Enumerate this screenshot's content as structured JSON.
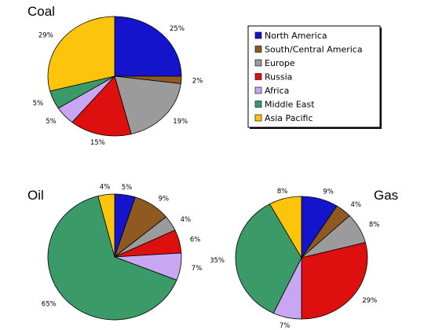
{
  "colors": {
    "North America": "#1414cc",
    "South/Central America": "#8f5a22",
    "Europe": "#9b9b9b",
    "Russia": "#dd0f0f",
    "Africa": "#c9a6f2",
    "Middle East": "#3a9a68",
    "Asia Pacific": "#fcc40c"
  },
  "legend": {
    "entries": [
      "North America",
      "South/Central America",
      "Europe",
      "Russia",
      "Africa",
      "Middle East",
      "Asia Pacific"
    ]
  },
  "chart_data": [
    {
      "type": "pie",
      "title": "Coal",
      "slices": [
        {
          "name": "North America",
          "value": 25,
          "label": "25%"
        },
        {
          "name": "South/Central America",
          "value": 2,
          "label": "2%"
        },
        {
          "name": "Europe",
          "value": 19,
          "label": "19%"
        },
        {
          "name": "Russia",
          "value": 15,
          "label": "15%"
        },
        {
          "name": "Africa",
          "value": 5,
          "label": "5%"
        },
        {
          "name": "Middle East",
          "value": 5,
          "label": "5%"
        },
        {
          "name": "Asia Pacific",
          "value": 29,
          "label": "29%"
        }
      ]
    },
    {
      "type": "pie",
      "title": "Oil",
      "slices": [
        {
          "name": "North America",
          "value": 5,
          "label": "5%"
        },
        {
          "name": "South/Central America",
          "value": 9,
          "label": "9%"
        },
        {
          "name": "Europe",
          "value": 4,
          "label": "4%"
        },
        {
          "name": "Russia",
          "value": 6,
          "label": "6%"
        },
        {
          "name": "Africa",
          "value": 7,
          "label": "7%"
        },
        {
          "name": "Middle East",
          "value": 65,
          "label": "65%"
        },
        {
          "name": "Asia Pacific",
          "value": 4,
          "label": "4%"
        }
      ]
    },
    {
      "type": "pie",
      "title": "Gas",
      "slices": [
        {
          "name": "North America",
          "value": 9,
          "label": "9%"
        },
        {
          "name": "South/Central America",
          "value": 4,
          "label": "4%"
        },
        {
          "name": "Europe",
          "value": 8,
          "label": "8%"
        },
        {
          "name": "Russia",
          "value": 29,
          "label": "29%"
        },
        {
          "name": "Africa",
          "value": 7,
          "label": "7%"
        },
        {
          "name": "Middle East",
          "value": 35,
          "label": "35%"
        },
        {
          "name": "Asia Pacific",
          "value": 8,
          "label": "8%"
        }
      ]
    }
  ]
}
